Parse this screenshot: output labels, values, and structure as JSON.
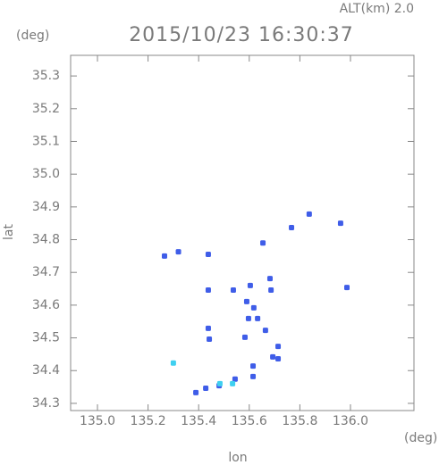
{
  "chart_data": {
    "type": "scatter",
    "title": "2015/10/23 16:30:37",
    "subtitle": "ALT(km) 2.0",
    "y_unit": "(deg)",
    "x_unit": "(deg)",
    "x_label": "lon",
    "y_label": "lat",
    "xlim": [
      134.894,
      136.251
    ],
    "ylim": [
      34.278,
      35.363
    ],
    "xticks": [
      {
        "value": 135,
        "label": "135.0"
      },
      135.2,
      135.4,
      135.6,
      135.8,
      {
        "value": 136,
        "label": "136.0"
      }
    ],
    "yticks": [
      34.3,
      34.4,
      34.5,
      34.6,
      34.7,
      34.8,
      34.9,
      {
        "value": 35,
        "label": "35.0"
      },
      35.1,
      35.2,
      35.3
    ],
    "x": [
      135.265,
      135.32,
      135.438,
      135.654,
      135.767,
      135.837,
      135.961,
      135.986,
      135.682,
      135.686,
      135.604,
      135.59,
      135.537,
      135.438,
      135.618,
      135.633,
      135.597,
      135.583,
      135.664,
      135.714,
      135.714,
      135.693,
      135.438,
      135.442,
      135.615,
      135.615,
      135.544,
      135.481,
      135.428,
      135.389,
      135.3,
      135.484,
      135.534
    ],
    "values": [
      34.75,
      34.763,
      34.755,
      34.79,
      34.837,
      34.878,
      34.85,
      34.654,
      34.681,
      34.646,
      34.66,
      34.611,
      34.646,
      34.646,
      34.592,
      34.559,
      34.559,
      34.502,
      34.523,
      34.474,
      34.436,
      34.442,
      34.529,
      34.496,
      34.414,
      34.382,
      34.374,
      34.354,
      34.346,
      34.333,
      34.423,
      34.36,
      34.36
    ],
    "colors": [
      "#3f5de8",
      "#3f5de8",
      "#3f5de8",
      "#3f5de8",
      "#3f5de8",
      "#3f5de8",
      "#3f5de8",
      "#3f5de8",
      "#3f5de8",
      "#3f5de8",
      "#3f5de8",
      "#3f5de8",
      "#3f5de8",
      "#3f5de8",
      "#3f5de8",
      "#3f5de8",
      "#3f5de8",
      "#3f5de8",
      "#3f5de8",
      "#3f5de8",
      "#3f5de8",
      "#3f5de8",
      "#3f5de8",
      "#3f5de8",
      "#3f5de8",
      "#3f5de8",
      "#3f5de8",
      "#3f5de8",
      "#3f5de8",
      "#3f5de8",
      "#3fd0f0",
      "#3fd0f0",
      "#3fd0f0"
    ]
  }
}
